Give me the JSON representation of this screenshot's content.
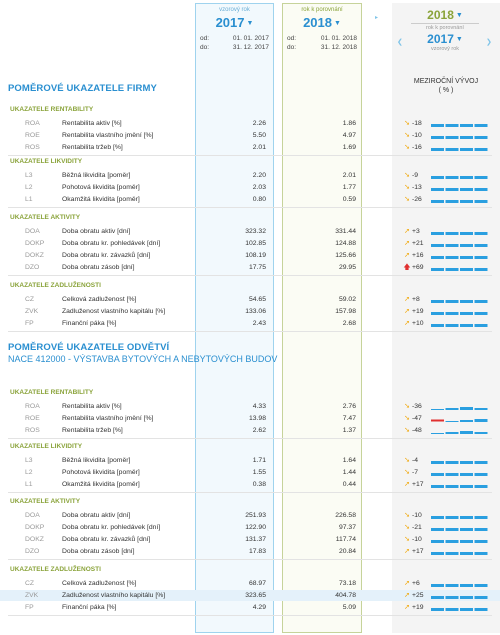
{
  "header": {
    "col1": {
      "label": "vzorový rok",
      "year": "2017",
      "od_label": "od:",
      "do_label": "do:",
      "od": "01. 01. 2017",
      "do": "31. 12. 2017"
    },
    "col2": {
      "label": "rok k porovnání",
      "year": "2018",
      "od_label": "od:",
      "do_label": "do:",
      "od": "01. 01. 2018",
      "do": "31. 12. 2018"
    },
    "trend": {
      "year1": "2018",
      "sub1": "rok k porovnání",
      "year2": "2017",
      "sub2": "vzorový rok",
      "title": "MEZIROČNÍ VÝVOJ",
      "unit": "( % )"
    }
  },
  "firm": {
    "title": "POMĚROVÉ UKAZATELE FIRMY",
    "groups": [
      {
        "title": "UKAZATELE RENTABILITY",
        "rows": [
          {
            "code": "ROA",
            "name": "Rentabilita aktiv  [%]",
            "v1": "2.26",
            "v2": "1.86",
            "dir": "down",
            "delta": "-18"
          },
          {
            "code": "ROE",
            "name": "Rentabilita vlastního jmění  [%]",
            "v1": "5.50",
            "v2": "4.97",
            "dir": "down",
            "delta": "-10"
          },
          {
            "code": "ROS",
            "name": "Rentabilita tržeb  [%]",
            "v1": "2.01",
            "v2": "1.69",
            "dir": "down",
            "delta": "-16"
          }
        ]
      },
      {
        "title": "UKAZATELE LIKVIDITY",
        "rows": [
          {
            "code": "L3",
            "name": "Běžná likvidita  [poměr]",
            "v1": "2.20",
            "v2": "2.01",
            "dir": "down",
            "delta": "-9"
          },
          {
            "code": "L2",
            "name": "Pohotová likvidita  [poměr]",
            "v1": "2.03",
            "v2": "1.77",
            "dir": "down",
            "delta": "-13"
          },
          {
            "code": "L1",
            "name": "Okamžitá likvidita  [poměr]",
            "v1": "0.80",
            "v2": "0.59",
            "dir": "down",
            "delta": "-26"
          }
        ]
      },
      {
        "title": "UKAZATELE AKTIVITY",
        "rows": [
          {
            "code": "DOA",
            "name": "Doba obratu aktiv  [dní]",
            "v1": "323.32",
            "v2": "331.44",
            "dir": "up",
            "delta": "+3"
          },
          {
            "code": "DOKP",
            "name": "Doba obratu kr. pohledávek  [dní]",
            "v1": "102.85",
            "v2": "124.88",
            "dir": "up",
            "delta": "+21"
          },
          {
            "code": "DOKZ",
            "name": "Doba obratu kr. závazků  [dní]",
            "v1": "108.19",
            "v2": "125.66",
            "dir": "up",
            "delta": "+16"
          },
          {
            "code": "DZO",
            "name": "Doba obratu zásob  [dní]",
            "v1": "17.75",
            "v2": "29.95",
            "dir": "bigup",
            "delta": "+69"
          }
        ]
      },
      {
        "title": "UKAZATELE ZADLUŽENOSTI",
        "rows": [
          {
            "code": "CZ",
            "name": "Celková zadluženost  [%]",
            "v1": "54.65",
            "v2": "59.02",
            "dir": "up",
            "delta": "+8"
          },
          {
            "code": "ZVK",
            "name": "Zadluženost vlastního kapitálu  [%]",
            "v1": "133.06",
            "v2": "157.98",
            "dir": "up",
            "delta": "+19"
          },
          {
            "code": "FP",
            "name": "Finanční páka  [%]",
            "v1": "2.43",
            "v2": "2.68",
            "dir": "up",
            "delta": "+10"
          }
        ]
      }
    ]
  },
  "industry": {
    "title": "POMĚROVÉ UKAZATELE ODVĚTVÍ",
    "subtitle": "NACE 412000 - VÝSTAVBA BYTOVÝCH A NEBYTOVÝCH BUDOV",
    "groups": [
      {
        "title": "UKAZATELE RENTABILITY",
        "rows": [
          {
            "code": "ROA",
            "name": "Rentabilita aktiv  [%]",
            "v1": "4.33",
            "v2": "2.76",
            "dir": "down",
            "delta": "-36"
          },
          {
            "code": "ROE",
            "name": "Rentabilita vlastního jmění  [%]",
            "v1": "13.98",
            "v2": "7.47",
            "dir": "down",
            "delta": "-47"
          },
          {
            "code": "ROS",
            "name": "Rentabilita tržeb  [%]",
            "v1": "2.62",
            "v2": "1.37",
            "dir": "down",
            "delta": "-48"
          }
        ]
      },
      {
        "title": "UKAZATELE LIKVIDITY",
        "rows": [
          {
            "code": "L3",
            "name": "Běžná likvidita  [poměr]",
            "v1": "1.71",
            "v2": "1.64",
            "dir": "down",
            "delta": "-4"
          },
          {
            "code": "L2",
            "name": "Pohotová likvidita  [poměr]",
            "v1": "1.55",
            "v2": "1.44",
            "dir": "down",
            "delta": "-7"
          },
          {
            "code": "L1",
            "name": "Okamžitá likvidita  [poměr]",
            "v1": "0.38",
            "v2": "0.44",
            "dir": "up",
            "delta": "+17"
          }
        ]
      },
      {
        "title": "UKAZATELE AKTIVITY",
        "rows": [
          {
            "code": "DOA",
            "name": "Doba obratu aktiv  [dní]",
            "v1": "251.93",
            "v2": "226.58",
            "dir": "down",
            "delta": "-10"
          },
          {
            "code": "DOKP",
            "name": "Doba obratu kr. pohledávek  [dní]",
            "v1": "122.90",
            "v2": "97.37",
            "dir": "down",
            "delta": "-21"
          },
          {
            "code": "DOKZ",
            "name": "Doba obratu kr. závazků  [dní]",
            "v1": "131.37",
            "v2": "117.74",
            "dir": "down",
            "delta": "-10"
          },
          {
            "code": "DZO",
            "name": "Doba obratu zásob  [dní]",
            "v1": "17.83",
            "v2": "20.84",
            "dir": "up",
            "delta": "+17"
          }
        ]
      },
      {
        "title": "UKAZATELE ZADLUŽENOSTI",
        "rows": [
          {
            "code": "CZ",
            "name": "Celková zadluženost  [%]",
            "v1": "68.97",
            "v2": "73.18",
            "dir": "up",
            "delta": "+6"
          },
          {
            "code": "ZVK",
            "name": "Zadluženost vlastního kapitálu  [%]",
            "v1": "323.65",
            "v2": "404.78",
            "dir": "up",
            "delta": "+25",
            "highlight": true
          },
          {
            "code": "FP",
            "name": "Finanční páka  [%]",
            "v1": "4.29",
            "v2": "5.09",
            "dir": "up",
            "delta": "+19"
          }
        ]
      }
    ]
  },
  "colors": {
    "accent": "#2a8fd0",
    "green": "#8aa33a",
    "bar": "#2a9fe0",
    "down": "#f0a500",
    "alert": "#e03030"
  },
  "icons": {
    "down": "arrow-down-right-icon",
    "up": "arrow-up-right-icon",
    "bigup": "arrow-up-icon"
  }
}
